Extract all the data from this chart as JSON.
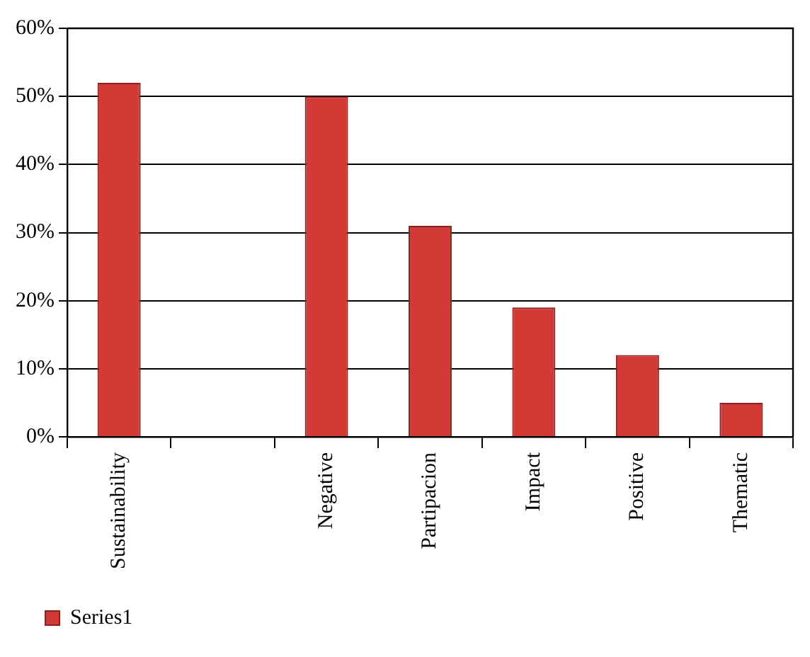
{
  "chart_data": {
    "type": "bar",
    "categories": [
      "Sustainability",
      null,
      "Negative",
      "Partipacion",
      "Impact",
      "Positive",
      "Thematic"
    ],
    "series": [
      {
        "name": "Series1",
        "color": "#d13a35",
        "values": [
          52,
          null,
          50,
          31,
          19,
          12,
          5
        ]
      }
    ],
    "ylim": [
      0,
      60
    ],
    "yticks": [
      {
        "value": 0,
        "label": "0%"
      },
      {
        "value": 10,
        "label": "10%"
      },
      {
        "value": 20,
        "label": "20%"
      },
      {
        "value": 30,
        "label": "30%"
      },
      {
        "value": 40,
        "label": "40%"
      },
      {
        "value": 50,
        "label": "50%"
      },
      {
        "value": 60,
        "label": "60%"
      }
    ],
    "grid": "y",
    "legend": "bottom left"
  }
}
